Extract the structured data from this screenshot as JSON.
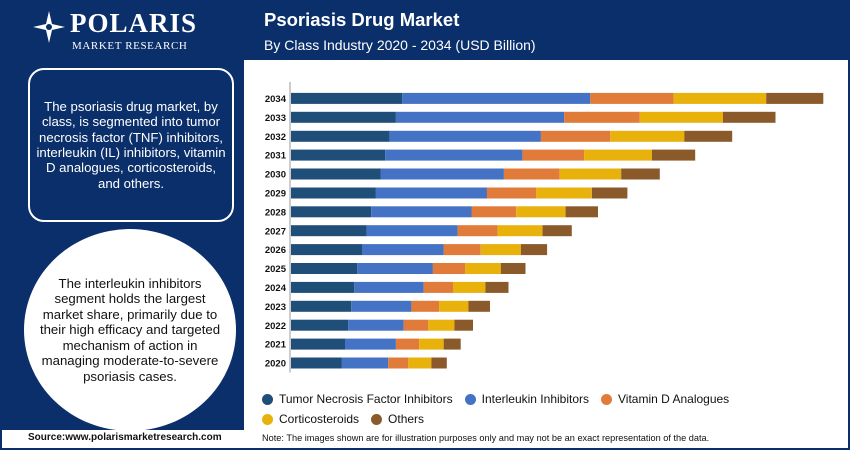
{
  "brand": {
    "name": "POLARIS",
    "tagline": "MARKET RESEARCH"
  },
  "header": {
    "title": "Psoriasis Drug Market",
    "subtitle": "By Class Industry 2020 - 2034 (USD Billion)"
  },
  "summary": "The psoriasis drug market, by class, is segmented into tumor necrosis factor (TNF) inhibitors, interleukin (IL) inhibitors, vitamin D analogues, corticosteroids, and others.",
  "highlight": "The interleukin inhibitors segment holds the largest market share, primarily due to their high efficacy and targeted mechanism of action in managing moderate-to-severe psoriasis cases.",
  "footer": {
    "source": "Source:www.polarismarketresearch.com",
    "note": "Note: The images shown are for illustration purposes only and may not be an exact representation of the data."
  },
  "colors": {
    "brand_navy": "#0b2f6a"
  },
  "chart_data": {
    "type": "bar",
    "orientation": "horizontal",
    "stacked": true,
    "categories": [
      "2034",
      "2033",
      "2032",
      "2031",
      "2030",
      "2029",
      "2028",
      "2027",
      "2026",
      "2025",
      "2024",
      "2023",
      "2022",
      "2021",
      "2020"
    ],
    "series": [
      {
        "name": "Tumor Necrosis Factor Inhibitors",
        "color": "#1f4e79",
        "values": [
          3.6,
          3.4,
          3.2,
          3.05,
          2.9,
          2.75,
          2.6,
          2.45,
          2.3,
          2.15,
          2.05,
          1.95,
          1.85,
          1.75,
          1.65
        ]
      },
      {
        "name": "Interleukin Inhibitors",
        "color": "#4472c4",
        "values": [
          6.1,
          5.45,
          4.9,
          4.45,
          4.0,
          3.6,
          3.25,
          2.95,
          2.65,
          2.45,
          2.25,
          1.95,
          1.8,
          1.65,
          1.5
        ]
      },
      {
        "name": "Vitamin D Analogues",
        "color": "#e07b39",
        "values": [
          2.7,
          2.45,
          2.25,
          2.0,
          1.8,
          1.6,
          1.45,
          1.3,
          1.2,
          1.05,
          0.95,
          0.9,
          0.8,
          0.75,
          0.65
        ]
      },
      {
        "name": "Corticosteroids",
        "color": "#e8b10c",
        "values": [
          3.0,
          2.7,
          2.4,
          2.2,
          2.0,
          1.8,
          1.6,
          1.45,
          1.3,
          1.15,
          1.05,
          0.95,
          0.85,
          0.8,
          0.75
        ]
      },
      {
        "name": "Others",
        "color": "#8b5a2b",
        "values": [
          1.85,
          1.7,
          1.55,
          1.4,
          1.25,
          1.15,
          1.05,
          0.95,
          0.85,
          0.8,
          0.75,
          0.7,
          0.6,
          0.55,
          0.5
        ]
      }
    ],
    "xlim": [
      0,
      17.5
    ],
    "grid": false,
    "legend_position": "bottom"
  }
}
